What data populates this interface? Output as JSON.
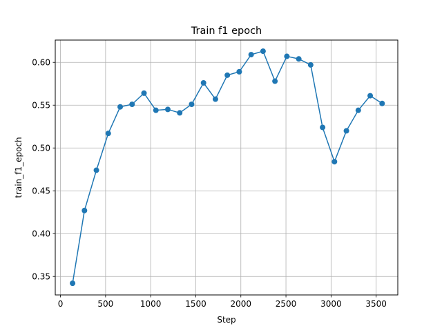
{
  "chart_data": {
    "type": "line",
    "title": "Train f1 epoch",
    "xlabel": "Step",
    "ylabel": "train_f1_epoch",
    "xlim": [
      -58,
      3740
    ],
    "ylim": [
      0.3284,
      0.626
    ],
    "xticks": [
      0,
      500,
      1000,
      1500,
      2000,
      2500,
      3000,
      3500
    ],
    "yticks": [
      0.35,
      0.4,
      0.45,
      0.5,
      0.55,
      0.6
    ],
    "ytick_labels": [
      "0.35",
      "0.40",
      "0.45",
      "0.50",
      "0.55",
      "0.60"
    ],
    "grid": true,
    "color": "#1f77b4",
    "series": [
      {
        "x": [
          134,
          266,
          398,
          530,
          662,
          794,
          926,
          1058,
          1190,
          1322,
          1454,
          1586,
          1718,
          1850,
          1982,
          2114,
          2246,
          2378,
          2510,
          2642,
          2774,
          2906,
          3038,
          3170,
          3302,
          3434,
          3566
        ],
        "y": [
          0.342,
          0.427,
          0.474,
          0.517,
          0.548,
          0.551,
          0.564,
          0.544,
          0.545,
          0.541,
          0.551,
          0.576,
          0.557,
          0.585,
          0.589,
          0.609,
          0.613,
          0.578,
          0.607,
          0.604,
          0.597,
          0.524,
          0.484,
          0.52,
          0.544,
          0.561,
          0.552
        ]
      }
    ]
  }
}
